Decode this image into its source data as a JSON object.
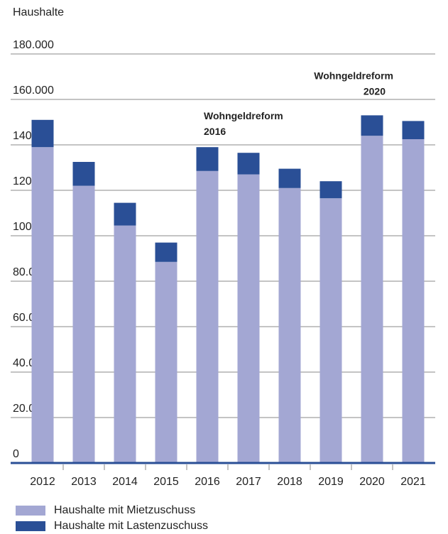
{
  "chart_data": {
    "type": "bar",
    "stacked": true,
    "ylabel": "Haushalte",
    "ylim": [
      0,
      180000
    ],
    "yticks": [
      0,
      20000,
      40000,
      60000,
      80000,
      100000,
      120000,
      140000,
      160000,
      180000
    ],
    "ytick_labels": [
      "0",
      "20.000",
      "40.000",
      "60.000",
      "80.000",
      "100.000",
      "120.000",
      "140.000",
      "160.000",
      "180.000"
    ],
    "categories": [
      "2012",
      "2013",
      "2014",
      "2015",
      "2016",
      "2017",
      "2018",
      "2019",
      "2020",
      "2021"
    ],
    "series": [
      {
        "name": "Haushalte mit Mietzuschuss",
        "color": "#a3a7d3",
        "values": [
          139000,
          122000,
          104500,
          88500,
          128500,
          127000,
          121000,
          116500,
          144000,
          142500
        ]
      },
      {
        "name": "Haushalte mit Lastenzuschuss",
        "color": "#2a4f96",
        "values": [
          12000,
          10500,
          10000,
          8500,
          10500,
          9500,
          8500,
          7500,
          9000,
          8000
        ]
      }
    ],
    "grid": true,
    "annotations": [
      {
        "line1": "Wohngeldreform",
        "line2": "2016",
        "category": "2016"
      },
      {
        "line1": "Wohngeldreform",
        "line2": "2020",
        "category": "2020"
      }
    ],
    "legend_position": "bottom-left"
  }
}
